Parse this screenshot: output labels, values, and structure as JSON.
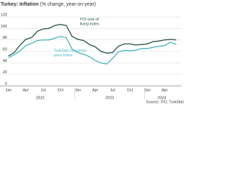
{
  "chart_data": {
    "type": "line",
    "title": "Turkey: Inflation",
    "subtitle": "(% change, year-on-year)",
    "source": "Source: ITO, TurkStat",
    "categories": [
      "Jan",
      null,
      null,
      "Apr",
      null,
      null,
      "Jul",
      null,
      null,
      "Oct",
      null,
      null,
      "Jan",
      null,
      null,
      "Apr",
      null,
      null,
      "Jul",
      null,
      null,
      "Oct",
      null,
      null,
      "Jan",
      null,
      null,
      "Apr",
      null,
      null
    ],
    "year_labels": [
      {
        "label": "2022",
        "start": 0,
        "end": 11
      },
      {
        "label": "2023",
        "start": 12,
        "end": 23
      },
      {
        "label": "2024",
        "start": 24,
        "end": 29
      }
    ],
    "series": [
      {
        "color": "#1f4e3d",
        "label_lines": [
          "ITO cost of",
          "living index"
        ],
        "label_at": 12,
        "values": [
          52,
          58,
          71,
          81,
          84,
          95,
          99,
          100,
          105,
          107,
          105,
          86,
          81,
          79,
          72,
          68,
          60,
          57,
          58,
          69,
          73,
          73,
          71,
          72,
          73,
          77,
          78,
          80,
          81,
          80
        ]
      },
      {
        "color": "#3db6bd",
        "label_lines": [
          "TurkStat consumer",
          "price index"
        ],
        "label_at": 11,
        "values": [
          49,
          54,
          61,
          70,
          74,
          79,
          80,
          80,
          83,
          86,
          84,
          64,
          58,
          55,
          51,
          44,
          40,
          38,
          48,
          59,
          62,
          61,
          62,
          65,
          65,
          67,
          69,
          70,
          76,
          72
        ]
      }
    ],
    "ylim": [
      0,
      120
    ],
    "yticks": [
      0,
      20,
      40,
      60,
      80,
      100,
      120
    ],
    "grid": true
  }
}
